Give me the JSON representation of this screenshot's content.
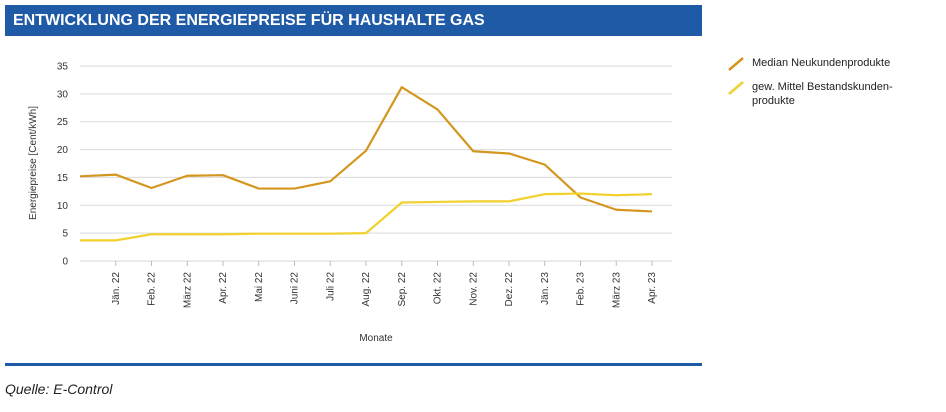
{
  "header": {
    "title": "ENTWICKLUNG DER ENERGIEPREISE FÜR HAUSHALTE GAS"
  },
  "chart_data": {
    "type": "line",
    "y_label": "Energiepreise [Cent/kWh]",
    "x_label": "Monate",
    "categories": [
      null,
      "Jän. 22",
      "Feb. 22",
      "März 22",
      "Apr. 22",
      "Mai 22",
      "Juni 22",
      "Juli 22",
      "Aug. 22",
      "Sep. 22",
      "Okt. 22",
      "Nov. 22",
      "Dez. 22",
      "Jän. 23",
      "Feb. 23",
      "März 23",
      "Apr. 23"
    ],
    "series": [
      {
        "name": "Median Neukundenprodukte",
        "color": "#d4961f",
        "values": [
          15.2,
          15.5,
          13.1,
          15.3,
          15.4,
          13.0,
          13.0,
          14.3,
          19.8,
          31.2,
          27.2,
          19.7,
          19.3,
          17.3,
          11.4,
          9.2,
          8.9
        ]
      },
      {
        "name": "gew. Mittel Bestandskunden-produkte",
        "color": "#f2d12c",
        "values": [
          3.7,
          3.7,
          4.8,
          4.8,
          4.8,
          4.9,
          4.9,
          4.9,
          5.0,
          10.5,
          10.6,
          10.7,
          10.7,
          12.0,
          12.1,
          11.8,
          12.0
        ]
      }
    ],
    "ylim": [
      0,
      35
    ],
    "yticks": [
      0,
      5,
      10,
      15,
      20,
      25,
      30,
      35
    ],
    "grid": true,
    "legend": "right"
  },
  "footer": {
    "source": "Quelle: E-Control"
  }
}
